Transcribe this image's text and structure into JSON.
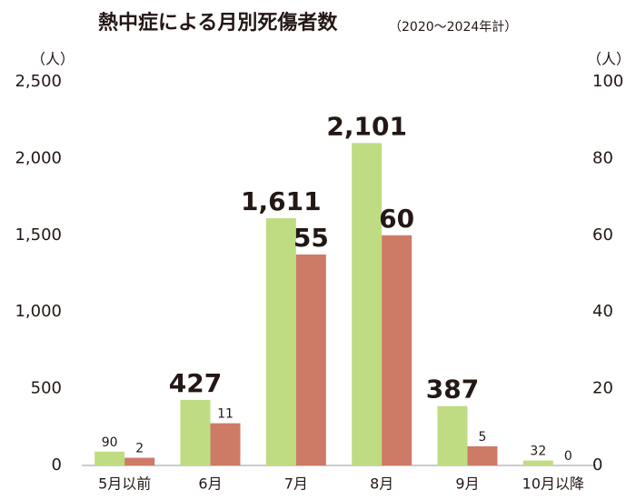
{
  "chart_data": {
    "type": "bar",
    "title": "熱中症による月別死傷者数",
    "subtitle": "（2020〜2024年計）",
    "ylabel": "（人）",
    "y2label": "（人）",
    "categories": [
      "5月以前",
      "6月",
      "7月",
      "8月",
      "9月",
      "10月以降"
    ],
    "series": [
      {
        "color": "#bfdc82",
        "values": [
          90,
          427,
          1611,
          2101,
          387,
          32
        ],
        "value_labels": [
          "90",
          "427",
          "1,611",
          "2,101",
          "387",
          "32"
        ]
      },
      {
        "color": "#cd7b66",
        "axis": "y2",
        "values": [
          2,
          11,
          55,
          60,
          5,
          0
        ]
      }
    ],
    "ylim": [
      0,
      2500
    ],
    "yticks": [
      0,
      500,
      {
        "value": 1000,
        "label": "1,000"
      },
      {
        "value": 1500,
        "label": "1,500"
      },
      {
        "value": 2000,
        "label": "2,000"
      },
      {
        "value": 2500,
        "label": "2,500"
      }
    ],
    "y2lim": [
      0,
      100
    ],
    "y2ticks": [
      0,
      20,
      40,
      60,
      80,
      100
    ]
  }
}
